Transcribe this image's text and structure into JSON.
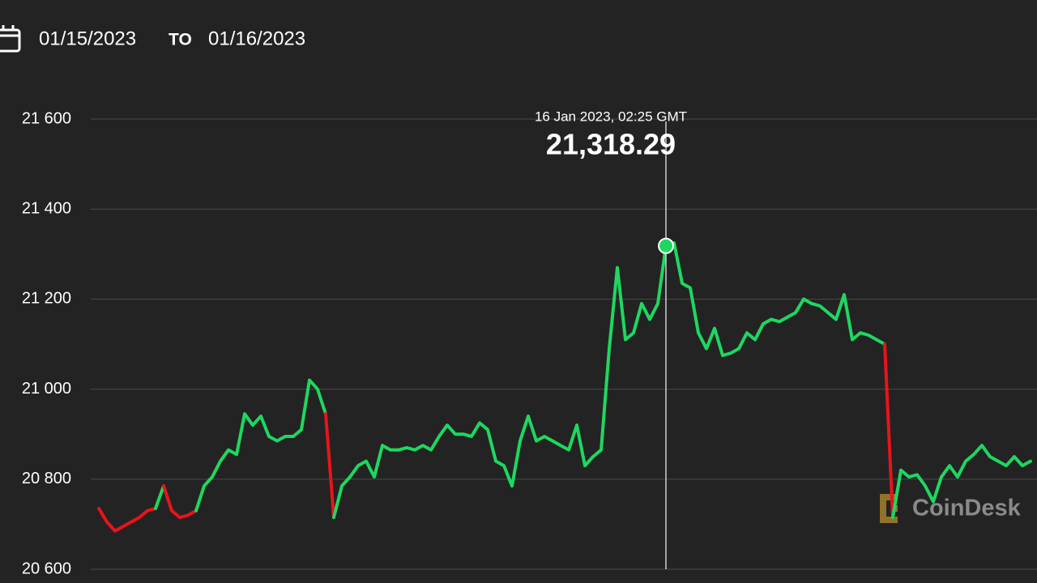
{
  "chart_data": {
    "type": "line",
    "date_from": "01/15/2023",
    "date_separator": "TO",
    "date_to": "01/16/2023",
    "tooltip": {
      "title": "16 Jan 2023, 02:25 GMT",
      "value": 21318.29,
      "value_label": "21,318.29"
    },
    "watermark": "CoinDesk",
    "up_color": "#1ed760",
    "down_color": "#e8141b",
    "values": [
      20735,
      20705,
      20685,
      20695,
      20705,
      20715,
      20730,
      20735,
      20785,
      20730,
      20715,
      20720,
      20730,
      20785,
      20805,
      20840,
      20865,
      20855,
      20945,
      20920,
      20940,
      20895,
      20885,
      20895,
      20895,
      20910,
      21020,
      21000,
      20945,
      20715,
      20785,
      20805,
      20830,
      20840,
      20805,
      20875,
      20865,
      20865,
      20870,
      20865,
      20875,
      20865,
      20895,
      20920,
      20900,
      20900,
      20895,
      20925,
      20910,
      20840,
      20830,
      20785,
      20885,
      20940,
      20885,
      20895,
      20885,
      20875,
      20865,
      20920,
      20830,
      20850,
      20865,
      21090,
      21270,
      21110,
      21125,
      21190,
      21155,
      21190,
      21318.29,
      21325,
      21235,
      21225,
      21125,
      21090,
      21135,
      21075,
      21080,
      21090,
      21125,
      21110,
      21145,
      21155,
      21150,
      21160,
      21170,
      21200,
      21190,
      21185,
      21170,
      21155,
      21210,
      21110,
      21125,
      21120,
      21110,
      21100,
      20715,
      20820,
      20805,
      20810,
      20785,
      20750,
      20805,
      20830,
      20805,
      20840,
      20855,
      20875,
      20850,
      20840,
      20830,
      20850,
      20830,
      20840
    ],
    "ylim": [
      20600,
      21600
    ],
    "yticks": [
      {
        "value": 20600,
        "label": "20 600"
      },
      {
        "value": 20800,
        "label": "20 800"
      },
      {
        "value": 21000,
        "label": "21 000"
      },
      {
        "value": 21200,
        "label": "21 200"
      },
      {
        "value": 21400,
        "label": "21 400"
      },
      {
        "value": 21600,
        "label": "21 600"
      }
    ],
    "grid": true
  }
}
